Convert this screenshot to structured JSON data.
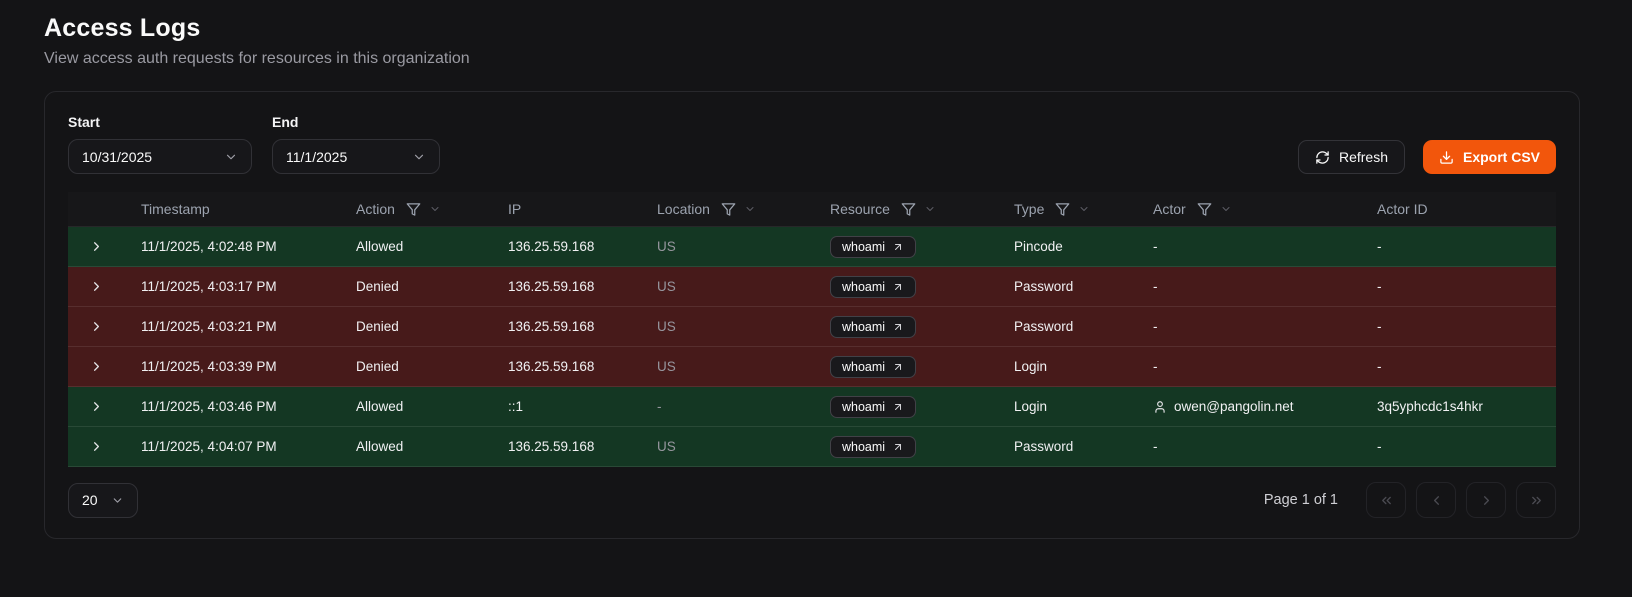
{
  "page": {
    "title": "Access Logs",
    "subtitle": "View access auth requests for resources in this organization"
  },
  "toolbar": {
    "start_label": "Start",
    "start_value": "10/31/2025",
    "end_label": "End",
    "end_value": "11/1/2025",
    "refresh_label": "Refresh",
    "export_label": "Export CSV"
  },
  "table": {
    "columns": [
      {
        "key": "timestamp",
        "label": "Timestamp",
        "filterable": false
      },
      {
        "key": "action",
        "label": "Action",
        "filterable": true
      },
      {
        "key": "ip",
        "label": "IP",
        "filterable": false
      },
      {
        "key": "location",
        "label": "Location",
        "filterable": true
      },
      {
        "key": "resource",
        "label": "Resource",
        "filterable": true
      },
      {
        "key": "type",
        "label": "Type",
        "filterable": true
      },
      {
        "key": "actor",
        "label": "Actor",
        "filterable": true
      },
      {
        "key": "actor_id",
        "label": "Actor ID",
        "filterable": false
      }
    ],
    "rows": [
      {
        "status": "allowed",
        "timestamp": "11/1/2025, 4:02:48 PM",
        "action": "Allowed",
        "ip": "136.25.59.168",
        "location": "US",
        "resource": "whoami",
        "type": "Pincode",
        "actor": "-",
        "actor_id": "-"
      },
      {
        "status": "denied",
        "timestamp": "11/1/2025, 4:03:17 PM",
        "action": "Denied",
        "ip": "136.25.59.168",
        "location": "US",
        "resource": "whoami",
        "type": "Password",
        "actor": "-",
        "actor_id": "-"
      },
      {
        "status": "denied",
        "timestamp": "11/1/2025, 4:03:21 PM",
        "action": "Denied",
        "ip": "136.25.59.168",
        "location": "US",
        "resource": "whoami",
        "type": "Password",
        "actor": "-",
        "actor_id": "-"
      },
      {
        "status": "denied",
        "timestamp": "11/1/2025, 4:03:39 PM",
        "action": "Denied",
        "ip": "136.25.59.168",
        "location": "US",
        "resource": "whoami",
        "type": "Login",
        "actor": "-",
        "actor_id": "-"
      },
      {
        "status": "allowed",
        "timestamp": "11/1/2025, 4:03:46 PM",
        "action": "Allowed",
        "ip": "::1",
        "location": "-",
        "resource": "whoami",
        "type": "Login",
        "actor": "owen@pangolin.net",
        "actor_id": "3q5yphcdc1s4hkr"
      },
      {
        "status": "allowed",
        "timestamp": "11/1/2025, 4:04:07 PM",
        "action": "Allowed",
        "ip": "136.25.59.168",
        "location": "US",
        "resource": "whoami",
        "type": "Password",
        "actor": "-",
        "actor_id": "-"
      }
    ]
  },
  "footer": {
    "page_size": "20",
    "page_info": "Page 1 of 1"
  },
  "colors": {
    "accent": "#F2560C",
    "allowed_row": "#143723",
    "denied_row": "#471A1A"
  },
  "icons": {
    "expander": "chevron-right-icon",
    "filter": "funnel-icon",
    "resource_link": "arrow-up-right-icon",
    "actor": "user-icon",
    "refresh": "refresh-icon",
    "export": "download-icon"
  }
}
